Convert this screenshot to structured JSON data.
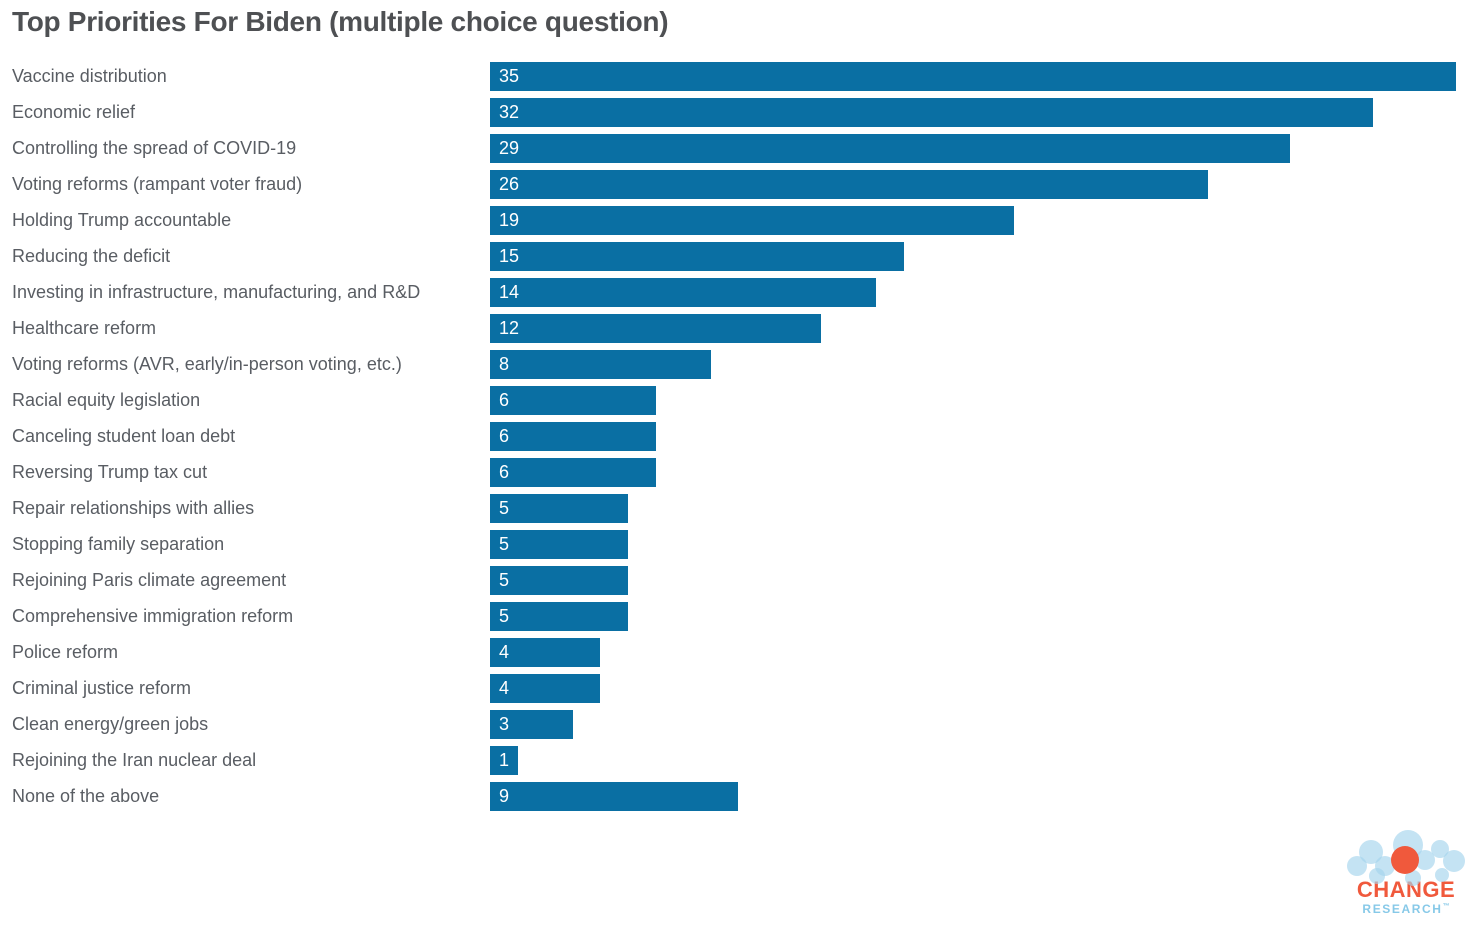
{
  "title": "Top Priorities For Biden (multiple choice question)",
  "chart_data": {
    "type": "bar",
    "orientation": "horizontal",
    "title": "Top Priorities For Biden (multiple choice question)",
    "categories": [
      "Vaccine distribution",
      "Economic relief",
      "Controlling the spread of COVID-19",
      "Voting reforms (rampant voter fraud)",
      "Holding Trump accountable",
      "Reducing the deficit",
      "Investing in infrastructure, manufacturing, and R&D",
      "Healthcare reform",
      "Voting reforms (AVR, early/in-person voting, etc.)",
      "Racial equity legislation",
      "Canceling student loan debt",
      "Reversing Trump tax cut",
      "Repair relationships with allies",
      "Stopping family separation",
      "Rejoining Paris climate agreement",
      "Comprehensive immigration reform",
      "Police reform",
      "Criminal justice reform",
      "Clean energy/green jobs",
      "Rejoining the Iran nuclear deal",
      "None of the above"
    ],
    "values": [
      35,
      32,
      29,
      26,
      19,
      15,
      14,
      12,
      8,
      6,
      6,
      6,
      5,
      5,
      5,
      5,
      4,
      4,
      3,
      1,
      9
    ],
    "xlim": [
      0,
      35
    ],
    "value_labels_inside_bars": true,
    "grid": false,
    "legend": false
  },
  "colors": {
    "bar": "#0a6fa3",
    "value_label": "#ffffff",
    "category_label": "#595d63",
    "title": "#4e5053",
    "background": "#ffffff"
  },
  "logo": {
    "line1": "CHANGE",
    "line2": "RESEARCH",
    "trademark": "™",
    "orange": "#f0593c",
    "light_blue": "#a4d4ec"
  }
}
